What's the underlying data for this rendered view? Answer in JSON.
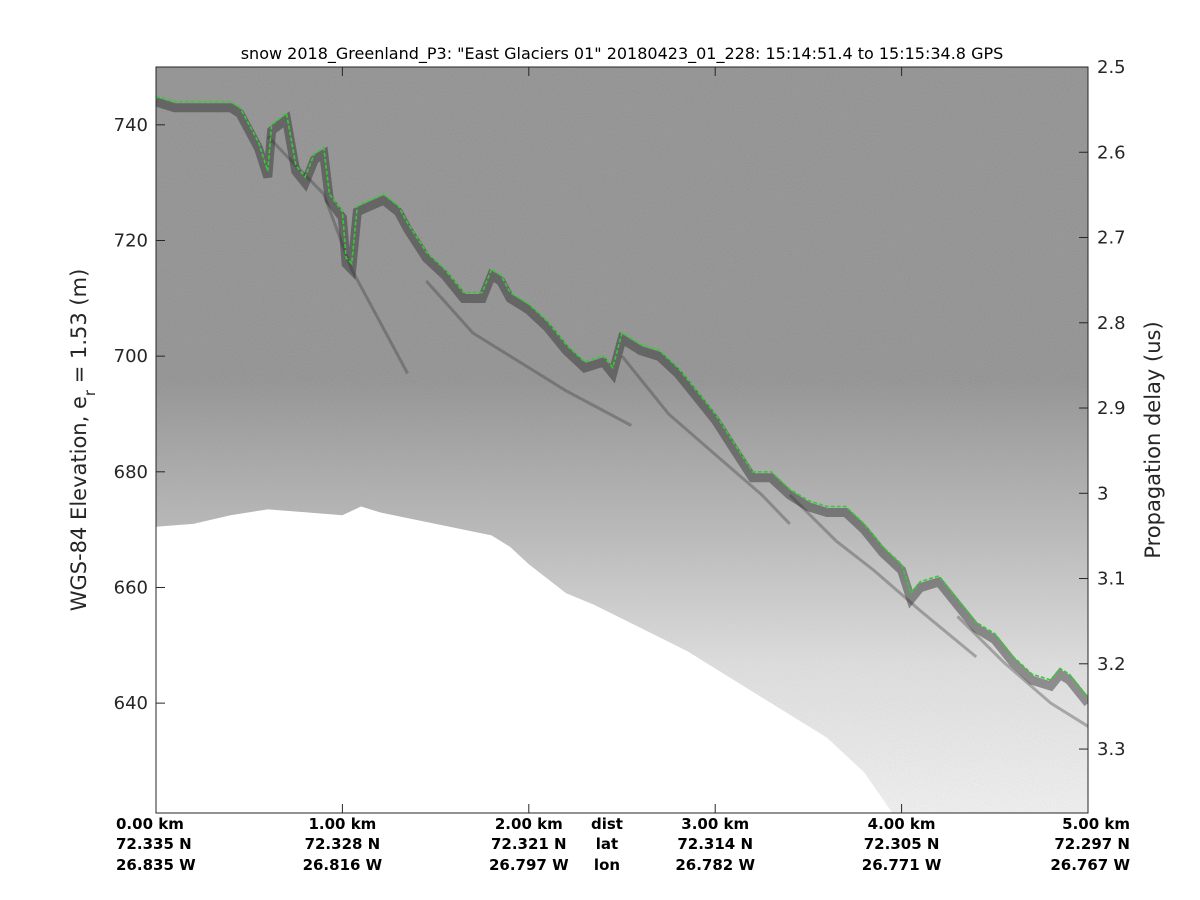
{
  "chart_data": {
    "type": "radargram",
    "title": "snow 2018_Greenland_P3: \"East Glaciers 01\"  20180423_01_228: 15:14:51.4 to 15:15:34.8 GPS",
    "ylabel": "WGS-84 Elevation, e",
    "ylabel_sub": "r",
    "ylabel_suffix": " = 1.53 (m)",
    "y2label": "Propagation delay (us)",
    "ylim": [
      621,
      750
    ],
    "y2lim": [
      2.5,
      3.375
    ],
    "xlim": [
      0,
      5
    ],
    "grid": false,
    "colors": {
      "surface_line": "#33cc33",
      "background_top": "#8e8e8e",
      "background_bottom": "#ffffff"
    },
    "y_ticks": [
      {
        "value": 740,
        "label": "740"
      },
      {
        "value": 720,
        "label": "720"
      },
      {
        "value": 700,
        "label": "700"
      },
      {
        "value": 680,
        "label": "680"
      },
      {
        "value": 660,
        "label": "660"
      },
      {
        "value": 640,
        "label": "640"
      }
    ],
    "y2_ticks": [
      {
        "value": 2.5,
        "label": "2.5"
      },
      {
        "value": 2.6,
        "label": "2.6"
      },
      {
        "value": 2.7,
        "label": "2.7"
      },
      {
        "value": 2.8,
        "label": "2.8"
      },
      {
        "value": 2.9,
        "label": "2.9"
      },
      {
        "value": 3.0,
        "label": "3"
      },
      {
        "value": 3.1,
        "label": "3.1"
      },
      {
        "value": 3.2,
        "label": "3.2"
      },
      {
        "value": 3.3,
        "label": "3.3"
      }
    ],
    "x_ticks": [
      {
        "value": 0,
        "dist": "0.00 km",
        "lat": "72.335 N",
        "lon": "26.835 W"
      },
      {
        "value": 1,
        "dist": "1.00 km",
        "lat": "72.328 N",
        "lon": "26.816 W"
      },
      {
        "value": 2,
        "dist": "2.00 km",
        "lat": "72.321 N",
        "lon": "26.797 W"
      },
      {
        "value": 3,
        "dist": "3.00 km",
        "lat": "72.314 N",
        "lon": "26.782 W"
      },
      {
        "value": 4,
        "dist": "4.00 km",
        "lat": "72.305 N",
        "lon": "26.771 W"
      },
      {
        "value": 5,
        "dist": "5.00 km",
        "lat": "72.297 N",
        "lon": "26.767 W"
      }
    ],
    "row_labels": {
      "x": 2.5,
      "dist": "dist",
      "lat": "lat",
      "lon": "lon"
    },
    "surface_layer": [
      [
        0.0,
        745
      ],
      [
        0.1,
        744
      ],
      [
        0.25,
        744
      ],
      [
        0.4,
        744
      ],
      [
        0.45,
        743
      ],
      [
        0.55,
        737
      ],
      [
        0.6,
        732
      ],
      [
        0.62,
        740
      ],
      [
        0.7,
        742
      ],
      [
        0.75,
        733
      ],
      [
        0.8,
        731
      ],
      [
        0.85,
        735
      ],
      [
        0.9,
        736
      ],
      [
        0.93,
        728
      ],
      [
        1.0,
        725
      ],
      [
        1.02,
        717
      ],
      [
        1.05,
        716
      ],
      [
        1.08,
        726
      ],
      [
        1.15,
        727
      ],
      [
        1.22,
        728
      ],
      [
        1.3,
        726
      ],
      [
        1.35,
        723
      ],
      [
        1.45,
        718
      ],
      [
        1.55,
        715
      ],
      [
        1.65,
        711
      ],
      [
        1.75,
        711
      ],
      [
        1.8,
        715
      ],
      [
        1.85,
        714
      ],
      [
        1.9,
        711
      ],
      [
        2.0,
        709
      ],
      [
        2.1,
        706
      ],
      [
        2.2,
        702
      ],
      [
        2.3,
        699
      ],
      [
        2.4,
        700
      ],
      [
        2.45,
        698
      ],
      [
        2.5,
        704
      ],
      [
        2.6,
        702
      ],
      [
        2.7,
        701
      ],
      [
        2.8,
        698
      ],
      [
        2.9,
        694
      ],
      [
        3.0,
        690
      ],
      [
        3.1,
        685
      ],
      [
        3.2,
        680
      ],
      [
        3.3,
        680
      ],
      [
        3.4,
        677
      ],
      [
        3.5,
        675
      ],
      [
        3.6,
        674
      ],
      [
        3.7,
        674
      ],
      [
        3.8,
        671
      ],
      [
        3.9,
        667
      ],
      [
        4.0,
        664
      ],
      [
        4.05,
        659
      ],
      [
        4.1,
        661
      ],
      [
        4.2,
        662
      ],
      [
        4.3,
        658
      ],
      [
        4.4,
        654
      ],
      [
        4.5,
        652
      ],
      [
        4.6,
        648
      ],
      [
        4.7,
        645
      ],
      [
        4.8,
        644
      ],
      [
        4.85,
        646
      ],
      [
        4.9,
        645
      ],
      [
        5.0,
        641
      ]
    ],
    "no_data_boundary": [
      [
        0.0,
        670.5
      ],
      [
        0.2,
        671
      ],
      [
        0.4,
        672.5
      ],
      [
        0.6,
        673.5
      ],
      [
        0.8,
        673
      ],
      [
        1.0,
        672.5
      ],
      [
        1.1,
        674
      ],
      [
        1.2,
        673
      ],
      [
        1.5,
        671
      ],
      [
        1.8,
        669
      ],
      [
        1.9,
        667
      ],
      [
        2.0,
        664
      ],
      [
        2.2,
        659
      ],
      [
        2.35,
        657
      ],
      [
        2.6,
        653
      ],
      [
        2.85,
        649
      ],
      [
        3.1,
        644
      ],
      [
        3.35,
        639
      ],
      [
        3.6,
        634
      ],
      [
        3.8,
        628
      ],
      [
        3.95,
        621
      ]
    ],
    "reflector_arcs": [
      [
        [
          0.6,
          738
        ],
        [
          0.9,
          728
        ],
        [
          1.05,
          715
        ],
        [
          1.2,
          706
        ],
        [
          1.35,
          697
        ]
      ],
      [
        [
          1.45,
          713
        ],
        [
          1.7,
          704
        ],
        [
          1.95,
          699
        ],
        [
          2.2,
          694
        ],
        [
          2.55,
          688
        ]
      ],
      [
        [
          2.5,
          700
        ],
        [
          2.75,
          690
        ],
        [
          3.0,
          683
        ],
        [
          3.25,
          676
        ],
        [
          3.4,
          671
        ]
      ],
      [
        [
          3.4,
          676
        ],
        [
          3.65,
          668
        ],
        [
          3.85,
          663
        ],
        [
          4.1,
          656
        ],
        [
          4.4,
          648
        ]
      ],
      [
        [
          4.3,
          655
        ],
        [
          4.55,
          647
        ],
        [
          4.8,
          640
        ],
        [
          5.0,
          636
        ]
      ]
    ]
  }
}
